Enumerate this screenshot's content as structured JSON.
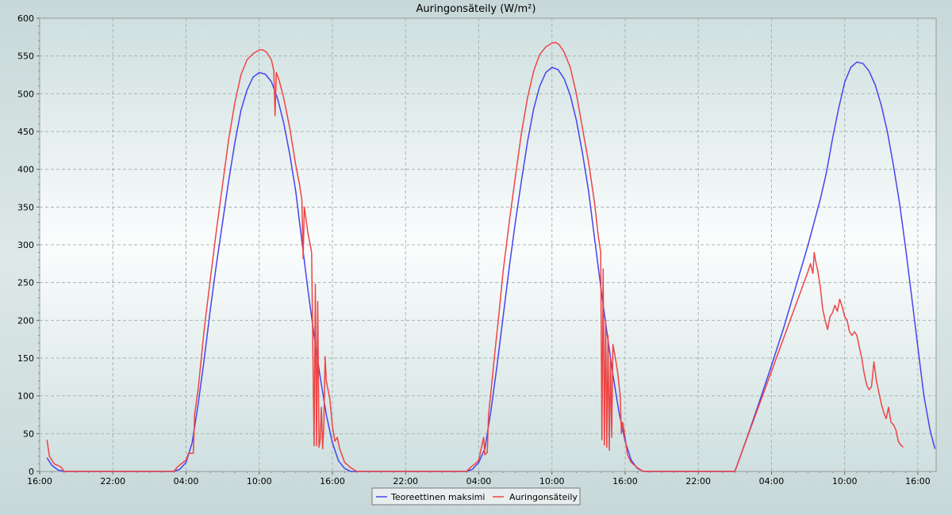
{
  "chart_data": {
    "type": "line",
    "title": "Auringonsäteily (W/m²)",
    "xlabel": "",
    "ylabel": "",
    "x_unit": "hours",
    "x_range": [
      0,
      73.5
    ],
    "x_ticks": [
      {
        "x": 0,
        "label": "16:00"
      },
      {
        "x": 6,
        "label": "22:00"
      },
      {
        "x": 12,
        "label": "04:00"
      },
      {
        "x": 18,
        "label": "10:00"
      },
      {
        "x": 24,
        "label": "16:00"
      },
      {
        "x": 30,
        "label": "22:00"
      },
      {
        "x": 36,
        "label": "04:00"
      },
      {
        "x": 42,
        "label": "10:00"
      },
      {
        "x": 48,
        "label": "16:00"
      },
      {
        "x": 54,
        "label": "22:00"
      },
      {
        "x": 60,
        "label": "04:00"
      },
      {
        "x": 66,
        "label": "10:00"
      },
      {
        "x": 72,
        "label": "16:00"
      }
    ],
    "ylim": [
      0,
      600
    ],
    "y_ticks": [
      0,
      50,
      100,
      150,
      200,
      250,
      300,
      350,
      400,
      450,
      500,
      550,
      600
    ],
    "grid": true,
    "legend_position": "bottom-center",
    "series": [
      {
        "name": "Teoreettinen maksimi",
        "color": "#4444ee",
        "points": [
          [
            0.6,
            18
          ],
          [
            1.0,
            8
          ],
          [
            1.5,
            2
          ],
          [
            2.0,
            0
          ],
          [
            11.0,
            0
          ],
          [
            11.5,
            3
          ],
          [
            12.0,
            12
          ],
          [
            12.5,
            38
          ],
          [
            13.0,
            90
          ],
          [
            13.5,
            150
          ],
          [
            14.0,
            215
          ],
          [
            14.5,
            275
          ],
          [
            15.0,
            330
          ],
          [
            15.5,
            385
          ],
          [
            16.0,
            435
          ],
          [
            16.5,
            478
          ],
          [
            17.0,
            505
          ],
          [
            17.5,
            522
          ],
          [
            18.0,
            528
          ],
          [
            18.5,
            526
          ],
          [
            19.0,
            516
          ],
          [
            19.5,
            494
          ],
          [
            20.0,
            462
          ],
          [
            20.5,
            420
          ],
          [
            21.0,
            370
          ],
          [
            21.5,
            305
          ],
          [
            22.0,
            240
          ],
          [
            22.5,
            180
          ],
          [
            23.0,
            125
          ],
          [
            23.5,
            75
          ],
          [
            24.0,
            38
          ],
          [
            24.5,
            14
          ],
          [
            25.0,
            4
          ],
          [
            25.5,
            0
          ],
          [
            35.0,
            0
          ],
          [
            35.5,
            3
          ],
          [
            36.0,
            12
          ],
          [
            36.5,
            30
          ],
          [
            37.0,
            80
          ],
          [
            37.5,
            140
          ],
          [
            38.0,
            205
          ],
          [
            38.5,
            270
          ],
          [
            39.0,
            330
          ],
          [
            39.5,
            385
          ],
          [
            40.0,
            437
          ],
          [
            40.5,
            480
          ],
          [
            41.0,
            510
          ],
          [
            41.5,
            528
          ],
          [
            42.0,
            535
          ],
          [
            42.5,
            532
          ],
          [
            43.0,
            520
          ],
          [
            43.5,
            498
          ],
          [
            44.0,
            465
          ],
          [
            44.5,
            422
          ],
          [
            45.0,
            372
          ],
          [
            45.5,
            308
          ],
          [
            46.0,
            245
          ],
          [
            46.5,
            185
          ],
          [
            47.0,
            128
          ],
          [
            47.5,
            78
          ],
          [
            48.0,
            40
          ],
          [
            48.5,
            15
          ],
          [
            49.0,
            4
          ],
          [
            49.5,
            0
          ],
          [
            57.0,
            0
          ],
          [
            58.0,
            45
          ],
          [
            59.0,
            92
          ],
          [
            60.0,
            140
          ],
          [
            61.0,
            190
          ],
          [
            62.0,
            245
          ],
          [
            63.0,
            300
          ],
          [
            64.0,
            360
          ],
          [
            64.5,
            395
          ],
          [
            65.0,
            440
          ],
          [
            65.5,
            480
          ],
          [
            66.0,
            515
          ],
          [
            66.5,
            535
          ],
          [
            67.0,
            542
          ],
          [
            67.5,
            540
          ],
          [
            68.0,
            530
          ],
          [
            68.5,
            512
          ],
          [
            69.0,
            485
          ],
          [
            69.5,
            450
          ],
          [
            70.0,
            405
          ],
          [
            70.5,
            355
          ],
          [
            71.0,
            295
          ],
          [
            71.5,
            230
          ],
          [
            72.0,
            165
          ],
          [
            72.5,
            100
          ],
          [
            73.0,
            55
          ],
          [
            73.4,
            30
          ]
        ]
      },
      {
        "name": "Auringonsäteily",
        "color": "#ee4444",
        "points": [
          [
            0.6,
            42
          ],
          [
            0.8,
            20
          ],
          [
            1.0,
            15
          ],
          [
            1.2,
            10
          ],
          [
            1.5,
            8
          ],
          [
            1.8,
            5
          ],
          [
            2.0,
            0
          ],
          [
            11.0,
            0
          ],
          [
            11.3,
            6
          ],
          [
            11.6,
            10
          ],
          [
            12.0,
            15
          ],
          [
            12.2,
            24
          ],
          [
            12.4,
            24
          ],
          [
            12.6,
            24
          ],
          [
            12.7,
            75
          ],
          [
            13.0,
            110
          ],
          [
            13.5,
            190
          ],
          [
            14.0,
            255
          ],
          [
            14.5,
            320
          ],
          [
            15.0,
            380
          ],
          [
            15.5,
            440
          ],
          [
            16.0,
            488
          ],
          [
            16.5,
            525
          ],
          [
            17.0,
            545
          ],
          [
            17.5,
            553
          ],
          [
            18.0,
            558
          ],
          [
            18.3,
            558
          ],
          [
            18.6,
            555
          ],
          [
            19.0,
            545
          ],
          [
            19.2,
            530
          ],
          [
            19.3,
            471
          ],
          [
            19.4,
            528
          ],
          [
            19.6,
            520
          ],
          [
            20.0,
            495
          ],
          [
            20.5,
            455
          ],
          [
            21.0,
            405
          ],
          [
            21.3,
            380
          ],
          [
            21.5,
            360
          ],
          [
            21.6,
            282
          ],
          [
            21.7,
            350
          ],
          [
            22.0,
            315
          ],
          [
            22.3,
            290
          ],
          [
            22.5,
            34
          ],
          [
            22.6,
            248
          ],
          [
            22.7,
            34
          ],
          [
            22.8,
            225
          ],
          [
            22.9,
            32
          ],
          [
            23.0,
            42
          ],
          [
            23.1,
            85
          ],
          [
            23.2,
            30
          ],
          [
            23.3,
            62
          ],
          [
            23.4,
            152
          ],
          [
            23.5,
            120
          ],
          [
            23.8,
            95
          ],
          [
            24.0,
            60
          ],
          [
            24.2,
            40
          ],
          [
            24.4,
            45
          ],
          [
            24.6,
            30
          ],
          [
            25.0,
            12
          ],
          [
            25.5,
            5
          ],
          [
            26.0,
            0
          ],
          [
            35.0,
            0
          ],
          [
            35.3,
            5
          ],
          [
            35.7,
            10
          ],
          [
            36.0,
            15
          ],
          [
            36.2,
            30
          ],
          [
            36.4,
            45
          ],
          [
            36.5,
            22
          ],
          [
            36.7,
            25
          ],
          [
            36.8,
            75
          ],
          [
            37.0,
            105
          ],
          [
            37.3,
            155
          ],
          [
            37.6,
            200
          ],
          [
            38.0,
            265
          ],
          [
            38.5,
            330
          ],
          [
            39.0,
            390
          ],
          [
            39.5,
            448
          ],
          [
            40.0,
            495
          ],
          [
            40.5,
            530
          ],
          [
            41.0,
            552
          ],
          [
            41.5,
            562
          ],
          [
            42.0,
            567
          ],
          [
            42.3,
            568
          ],
          [
            42.6,
            565
          ],
          [
            43.0,
            555
          ],
          [
            43.5,
            535
          ],
          [
            44.0,
            500
          ],
          [
            44.5,
            455
          ],
          [
            45.0,
            410
          ],
          [
            45.5,
            355
          ],
          [
            45.8,
            312
          ],
          [
            46.0,
            290
          ],
          [
            46.1,
            42
          ],
          [
            46.2,
            268
          ],
          [
            46.3,
            35
          ],
          [
            46.4,
            200
          ],
          [
            46.5,
            32
          ],
          [
            46.6,
            180
          ],
          [
            46.7,
            28
          ],
          [
            46.8,
            150
          ],
          [
            46.9,
            45
          ],
          [
            47.0,
            168
          ],
          [
            47.2,
            150
          ],
          [
            47.4,
            130
          ],
          [
            47.6,
            100
          ],
          [
            47.7,
            50
          ],
          [
            47.8,
            65
          ],
          [
            48.0,
            45
          ],
          [
            48.2,
            22
          ],
          [
            48.5,
            12
          ],
          [
            49.0,
            5
          ],
          [
            49.5,
            0
          ],
          [
            57.0,
            0
          ],
          [
            63.0,
            265
          ],
          [
            63.2,
            275
          ],
          [
            63.4,
            262
          ],
          [
            63.5,
            290
          ],
          [
            63.6,
            280
          ],
          [
            63.8,
            265
          ],
          [
            64.0,
            245
          ],
          [
            64.2,
            215
          ],
          [
            64.4,
            200
          ],
          [
            64.6,
            188
          ],
          [
            64.8,
            205
          ],
          [
            65.0,
            210
          ],
          [
            65.2,
            220
          ],
          [
            65.4,
            212
          ],
          [
            65.6,
            228
          ],
          [
            65.8,
            218
          ],
          [
            66.0,
            205
          ],
          [
            66.2,
            200
          ],
          [
            66.4,
            185
          ],
          [
            66.6,
            180
          ],
          [
            66.8,
            185
          ],
          [
            67.0,
            180
          ],
          [
            67.2,
            165
          ],
          [
            67.4,
            150
          ],
          [
            67.6,
            130
          ],
          [
            67.8,
            115
          ],
          [
            68.0,
            108
          ],
          [
            68.2,
            112
          ],
          [
            68.4,
            145
          ],
          [
            68.6,
            120
          ],
          [
            68.8,
            105
          ],
          [
            69.0,
            90
          ],
          [
            69.2,
            78
          ],
          [
            69.4,
            70
          ],
          [
            69.6,
            85
          ],
          [
            69.8,
            65
          ],
          [
            70.0,
            62
          ],
          [
            70.2,
            55
          ],
          [
            70.4,
            40
          ],
          [
            70.6,
            35
          ],
          [
            70.8,
            32
          ]
        ]
      }
    ]
  }
}
